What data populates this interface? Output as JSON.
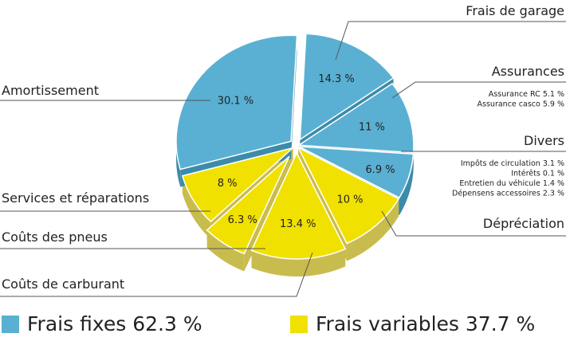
{
  "chart_data": {
    "type": "pie",
    "slices": [
      {
        "label": "Frais de garage",
        "value": 14.3,
        "value_label": "14.3 %",
        "group": "fixed"
      },
      {
        "label": "Assurances",
        "value": 11,
        "value_label": "11 %",
        "group": "fixed",
        "details": [
          "Assurance RC 5.1 %",
          "Assurance casco 5.9 %"
        ]
      },
      {
        "label": "Divers",
        "value": 6.9,
        "value_label": "6.9 %",
        "group": "fixed",
        "details": [
          "Impôts de circulation 3.1 %",
          "Intérêts 0.1 %",
          "Entretien du véhicule 1.4 %",
          "Dépensens accessoires 2.3 %"
        ]
      },
      {
        "label": "Dépréciation",
        "value": 10,
        "value_label": "10 %",
        "group": "variable"
      },
      {
        "label": "Coûts de carburant",
        "value": 13.4,
        "value_label": "13.4 %",
        "group": "variable"
      },
      {
        "label": "Coûts des pneus",
        "value": 6.3,
        "value_label": "6.3 %",
        "group": "variable"
      },
      {
        "label": "Services et réparations",
        "value": 8,
        "value_label": "8 %",
        "group": "variable"
      },
      {
        "label": "Amortissement",
        "value": 30.1,
        "value_label": "30.1 %",
        "group": "fixed"
      }
    ],
    "legend": [
      {
        "label": "Frais fixes 62.3 %",
        "group": "fixed"
      },
      {
        "label": "Frais variables 37.7 %",
        "group": "variable"
      }
    ],
    "colors": {
      "fixed": "#5ab0d3",
      "fixed_side": "#3c8ba9",
      "variable": "#f1e100",
      "variable_side": "#c9bc4e",
      "line": "#555555"
    },
    "style": "3d-exploded-pie"
  }
}
